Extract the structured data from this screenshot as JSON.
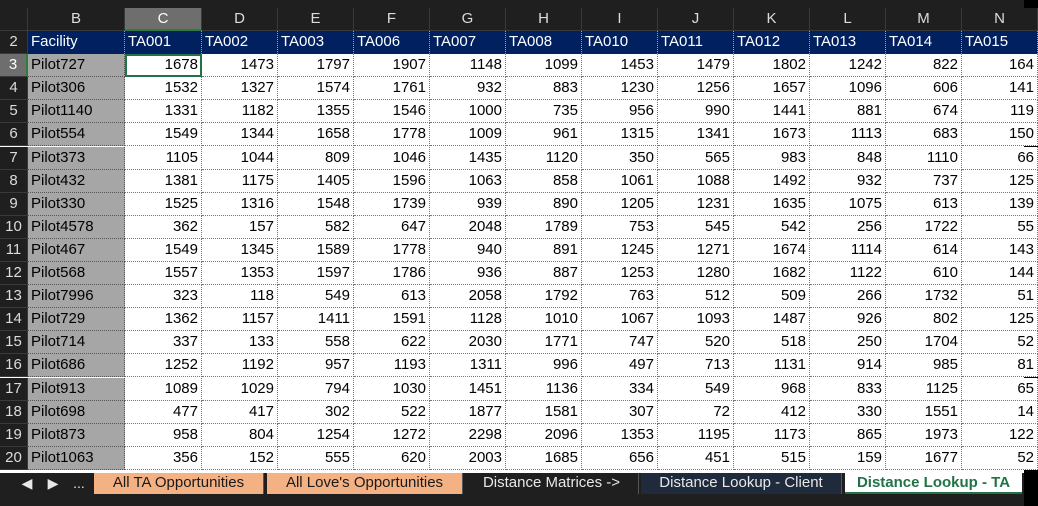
{
  "columns": [
    "B",
    "C",
    "D",
    "E",
    "F",
    "G",
    "H",
    "I",
    "J",
    "K",
    "L",
    "M",
    "N"
  ],
  "selected_column": "C",
  "header_row": {
    "row_number": "2",
    "cells": [
      "Facility",
      "TA001",
      "TA002",
      "TA003",
      "TA006",
      "TA007",
      "TA008",
      "TA010",
      "TA011",
      "TA012",
      "TA013",
      "TA014",
      "TA015"
    ]
  },
  "rows": [
    {
      "row": "3",
      "facility": "Pilot727",
      "values": [
        "1678",
        "1473",
        "1797",
        "1907",
        "1148",
        "1099",
        "1453",
        "1479",
        "1802",
        "1242",
        "822",
        "164"
      ]
    },
    {
      "row": "4",
      "facility": "Pilot306",
      "values": [
        "1532",
        "1327",
        "1574",
        "1761",
        "932",
        "883",
        "1230",
        "1256",
        "1657",
        "1096",
        "606",
        "141"
      ]
    },
    {
      "row": "5",
      "facility": "Pilot1140",
      "values": [
        "1331",
        "1182",
        "1355",
        "1546",
        "1000",
        "735",
        "956",
        "990",
        "1441",
        "881",
        "674",
        "119"
      ]
    },
    {
      "row": "6",
      "facility": "Pilot554",
      "values": [
        "1549",
        "1344",
        "1658",
        "1778",
        "1009",
        "961",
        "1315",
        "1341",
        "1673",
        "1113",
        "683",
        "150"
      ]
    },
    {
      "row": "7",
      "facility": "Pilot373",
      "values": [
        "1105",
        "1044",
        "809",
        "1046",
        "1435",
        "1120",
        "350",
        "565",
        "983",
        "848",
        "1110",
        "66"
      ]
    },
    {
      "row": "8",
      "facility": "Pilot432",
      "values": [
        "1381",
        "1175",
        "1405",
        "1596",
        "1063",
        "858",
        "1061",
        "1088",
        "1492",
        "932",
        "737",
        "125"
      ]
    },
    {
      "row": "9",
      "facility": "Pilot330",
      "values": [
        "1525",
        "1316",
        "1548",
        "1739",
        "939",
        "890",
        "1205",
        "1231",
        "1635",
        "1075",
        "613",
        "139"
      ]
    },
    {
      "row": "10",
      "facility": "Pilot4578",
      "values": [
        "362",
        "157",
        "582",
        "647",
        "2048",
        "1789",
        "753",
        "545",
        "542",
        "256",
        "1722",
        "55"
      ]
    },
    {
      "row": "11",
      "facility": "Pilot467",
      "values": [
        "1549",
        "1345",
        "1589",
        "1778",
        "940",
        "891",
        "1245",
        "1271",
        "1674",
        "1114",
        "614",
        "143"
      ]
    },
    {
      "row": "12",
      "facility": "Pilot568",
      "values": [
        "1557",
        "1353",
        "1597",
        "1786",
        "936",
        "887",
        "1253",
        "1280",
        "1682",
        "1122",
        "610",
        "144"
      ]
    },
    {
      "row": "13",
      "facility": "Pilot7996",
      "values": [
        "323",
        "118",
        "549",
        "613",
        "2058",
        "1792",
        "763",
        "512",
        "509",
        "266",
        "1732",
        "51"
      ]
    },
    {
      "row": "14",
      "facility": "Pilot729",
      "values": [
        "1362",
        "1157",
        "1411",
        "1591",
        "1128",
        "1010",
        "1067",
        "1093",
        "1487",
        "926",
        "802",
        "125"
      ]
    },
    {
      "row": "15",
      "facility": "Pilot714",
      "values": [
        "337",
        "133",
        "558",
        "622",
        "2030",
        "1771",
        "747",
        "520",
        "518",
        "250",
        "1704",
        "52"
      ]
    },
    {
      "row": "16",
      "facility": "Pilot686",
      "values": [
        "1252",
        "1192",
        "957",
        "1193",
        "1311",
        "996",
        "497",
        "713",
        "1131",
        "914",
        "985",
        "81"
      ]
    },
    {
      "row": "17",
      "facility": "Pilot913",
      "values": [
        "1089",
        "1029",
        "794",
        "1030",
        "1451",
        "1136",
        "334",
        "549",
        "968",
        "833",
        "1125",
        "65"
      ]
    },
    {
      "row": "18",
      "facility": "Pilot698",
      "values": [
        "477",
        "417",
        "302",
        "522",
        "1877",
        "1581",
        "307",
        "72",
        "412",
        "330",
        "1551",
        "14"
      ]
    },
    {
      "row": "19",
      "facility": "Pilot873",
      "values": [
        "958",
        "804",
        "1254",
        "1272",
        "2298",
        "2096",
        "1353",
        "1195",
        "1173",
        "865",
        "1973",
        "122"
      ]
    },
    {
      "row": "20",
      "facility": "Pilot1063",
      "values": [
        "356",
        "152",
        "555",
        "620",
        "2003",
        "1685",
        "656",
        "451",
        "515",
        "159",
        "1677",
        "52"
      ]
    }
  ],
  "tabs": [
    {
      "label": "All TA Opportunities",
      "style": "orange"
    },
    {
      "label": "All Love's Opportunities",
      "style": "orange"
    },
    {
      "label": "Distance Matrices ->",
      "style": "dark"
    },
    {
      "label": "Distance Lookup - Client",
      "style": "navy"
    },
    {
      "label": "Distance Lookup - TA",
      "style": "active"
    }
  ],
  "nav": {
    "prev": "◀",
    "next": "▶",
    "more": "..."
  }
}
